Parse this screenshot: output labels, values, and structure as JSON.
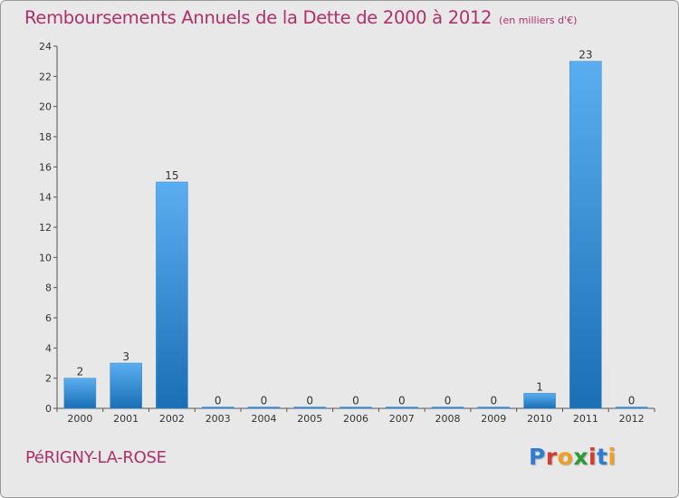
{
  "title": "Remboursements Annuels de la Dette de 2000 à 2012",
  "unit_label": "(en milliers d'€)",
  "commune": "PéRIGNY-LA-ROSE",
  "logo": {
    "letters": [
      "P",
      "r",
      "o",
      "x",
      "i",
      "t",
      "i"
    ],
    "colors": [
      "#2e7dd1",
      "#d83a2e",
      "#f0a020",
      "#2e9a3a",
      "#d83a2e",
      "#2e7dd1",
      "#f0a020"
    ]
  },
  "colors": {
    "title": "#b0306a",
    "bar_top": "#5aaef0",
    "bar_bottom": "#1a6fb5",
    "background": "#e8e8e8"
  },
  "chart_data": {
    "type": "bar",
    "categories": [
      "2000",
      "2001",
      "2002",
      "2003",
      "2004",
      "2005",
      "2006",
      "2007",
      "2008",
      "2009",
      "2010",
      "2011",
      "2012"
    ],
    "values": [
      2,
      3,
      15,
      0,
      0,
      0,
      0,
      0,
      0,
      0,
      1,
      23,
      0
    ],
    "ylim": [
      0,
      24
    ],
    "yticks": [
      0,
      2,
      4,
      6,
      8,
      10,
      12,
      14,
      16,
      18,
      20,
      22,
      24
    ],
    "grid": false
  }
}
